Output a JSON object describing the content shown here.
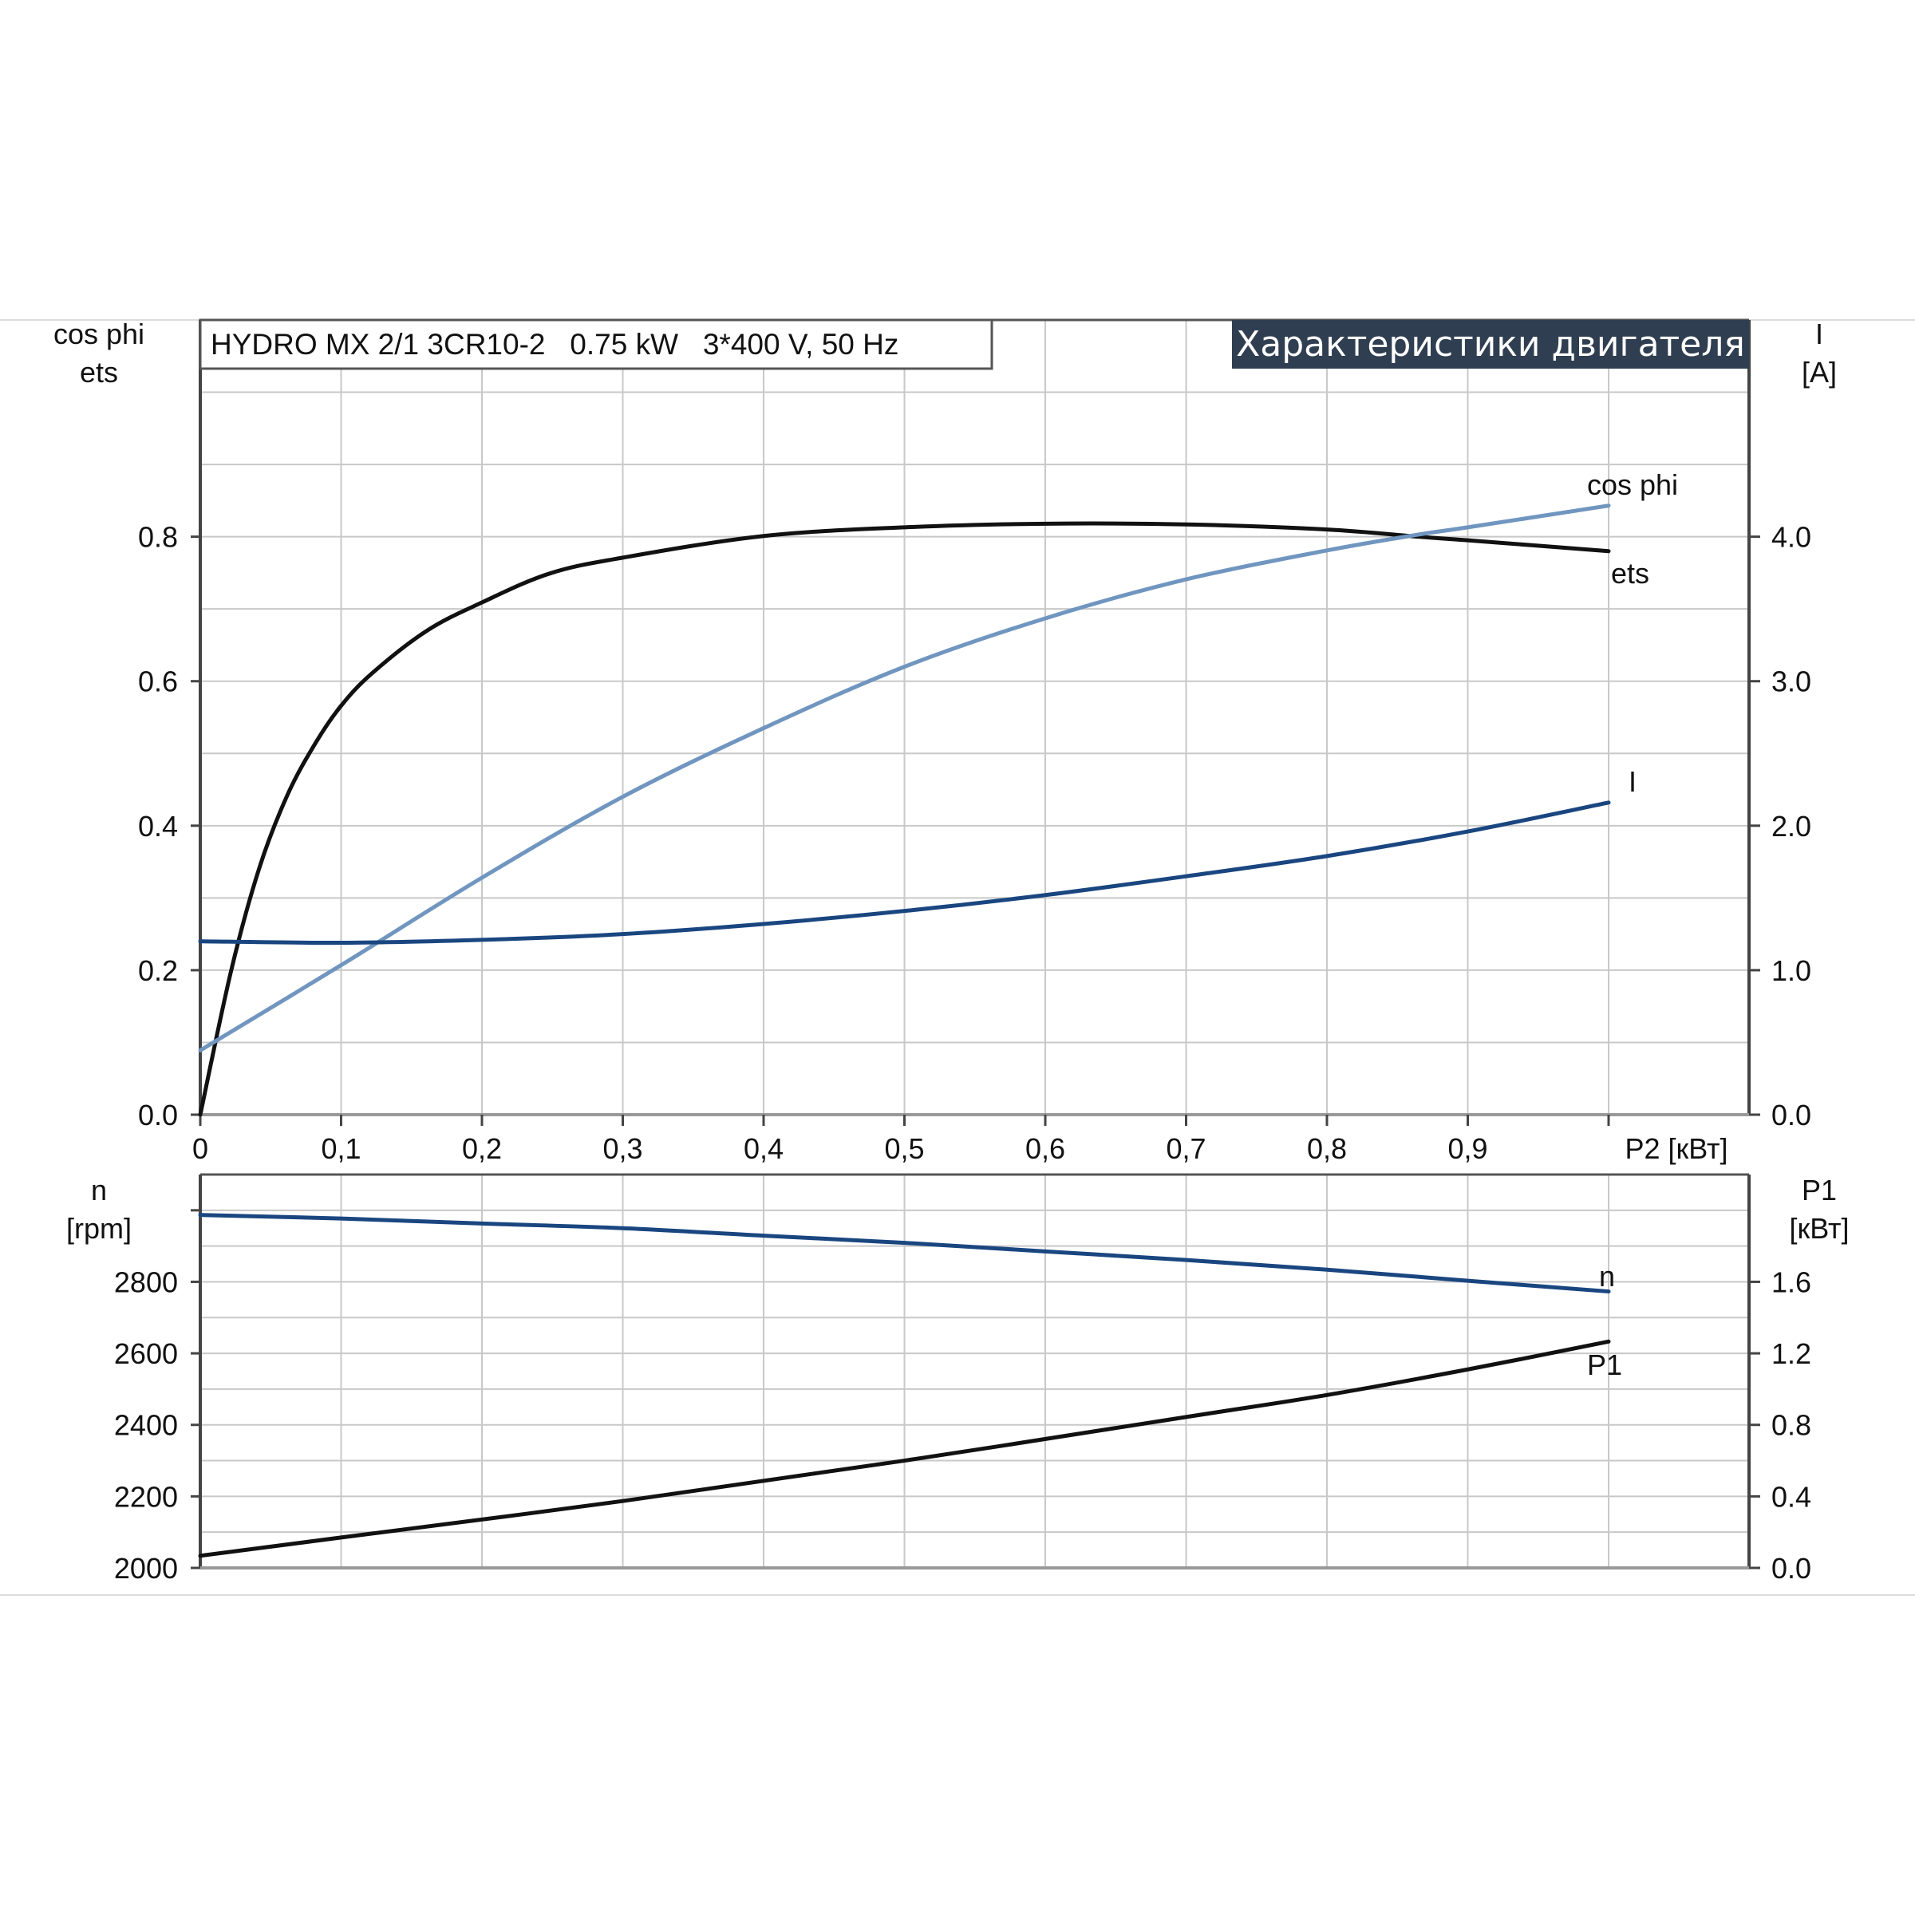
{
  "header": {
    "model_label": "HYDRO MX 2/1 3CR10-2   0.75 kW   3*400 V, 50 Hz",
    "title": "Характеристики двигателя",
    "title_bg": "#2f3e50"
  },
  "chart_data": [
    {
      "type": "line",
      "left_axis_label": [
        "cos phi",
        "ets"
      ],
      "right_axis_label": [
        "I",
        "[A]"
      ],
      "xlabel": "P2 [кВт]",
      "xlim": [
        0,
        1.1
      ],
      "ylim_left": [
        0,
        1.1
      ],
      "ylim_right": [
        0,
        5.5
      ],
      "x_ticks": [
        0,
        0.1,
        0.2,
        0.3,
        0.4,
        0.5,
        0.6,
        0.7,
        0.8,
        0.9
      ],
      "x_tick_labels": [
        "0",
        "0,1",
        "0,2",
        "0,3",
        "0,4",
        "0,5",
        "0,6",
        "0,7",
        "0,8",
        "0,9"
      ],
      "y_left_ticks": [
        0,
        0.2,
        0.4,
        0.6,
        0.8
      ],
      "y_left_tick_labels": [
        "0.0",
        "0.2",
        "0.4",
        "0.6",
        "0.8"
      ],
      "y_right_ticks": [
        0,
        1,
        2,
        3,
        4
      ],
      "y_right_tick_labels": [
        "0.0",
        "1.0",
        "2.0",
        "3.0",
        "4.0"
      ],
      "grid": true,
      "series": [
        {
          "name": "ets",
          "axis": "left",
          "color": "#111111",
          "x": [
            0,
            0.022,
            0.042,
            0.062,
            0.082,
            0.1,
            0.122,
            0.161,
            0.2,
            0.248,
            0.3,
            0.4,
            0.5,
            0.6,
            0.7,
            0.8,
            0.865,
            0.9,
            1.0
          ],
          "y": [
            0,
            0.2,
            0.342,
            0.443,
            0.515,
            0.566,
            0.611,
            0.67,
            0.709,
            0.749,
            0.771,
            0.801,
            0.813,
            0.818,
            0.817,
            0.81,
            0.8,
            0.795,
            0.78
          ]
        },
        {
          "name": "cos phi",
          "axis": "left",
          "color": "#7096c0",
          "x": [
            0,
            0.1,
            0.2,
            0.3,
            0.4,
            0.5,
            0.6,
            0.7,
            0.8,
            0.865,
            0.9,
            1.0
          ],
          "y": [
            0.089,
            0.207,
            0.328,
            0.44,
            0.535,
            0.62,
            0.687,
            0.741,
            0.781,
            0.803,
            0.813,
            0.843
          ]
        },
        {
          "name": "I",
          "axis": "right",
          "color": "#1a4680",
          "x": [
            0,
            0.1,
            0.2,
            0.3,
            0.4,
            0.5,
            0.6,
            0.7,
            0.8,
            0.9,
            1.0
          ],
          "y": [
            1.2,
            1.19,
            1.21,
            1.25,
            1.32,
            1.41,
            1.52,
            1.65,
            1.79,
            1.96,
            2.16
          ]
        }
      ]
    },
    {
      "type": "line",
      "left_axis_label": [
        "n",
        "[rpm]"
      ],
      "right_axis_label": [
        "P1",
        "[кВт]"
      ],
      "xlim": [
        0,
        1.1
      ],
      "ylim_left": [
        2000,
        3100
      ],
      "ylim_right": [
        0,
        2.2
      ],
      "y_left_ticks": [
        2000,
        2200,
        2400,
        2600,
        2800,
        3000
      ],
      "y_left_tick_labels": [
        "2000",
        "2200",
        "2400",
        "2600",
        "2800",
        ""
      ],
      "y_right_ticks": [
        0,
        0.4,
        0.8,
        1.2,
        1.6
      ],
      "y_right_tick_labels": [
        "0.0",
        "0.4",
        "0.8",
        "1.2",
        "1.6"
      ],
      "grid": true,
      "series": [
        {
          "name": "n",
          "axis": "left",
          "color": "#1a4680",
          "x": [
            0,
            0.1,
            0.2,
            0.3,
            0.4,
            0.5,
            0.6,
            0.7,
            0.8,
            0.9,
            1.0
          ],
          "y": [
            2987,
            2977,
            2963,
            2950,
            2929,
            2909,
            2885,
            2861,
            2834,
            2803,
            2773
          ]
        },
        {
          "name": "P1",
          "axis": "right",
          "color": "#111111",
          "x": [
            0,
            0.1,
            0.3,
            0.5,
            0.7,
            0.8,
            0.9,
            1.0
          ],
          "y": [
            0.068,
            0.17,
            0.374,
            0.6,
            0.844,
            0.967,
            1.11,
            1.266
          ]
        }
      ]
    }
  ]
}
